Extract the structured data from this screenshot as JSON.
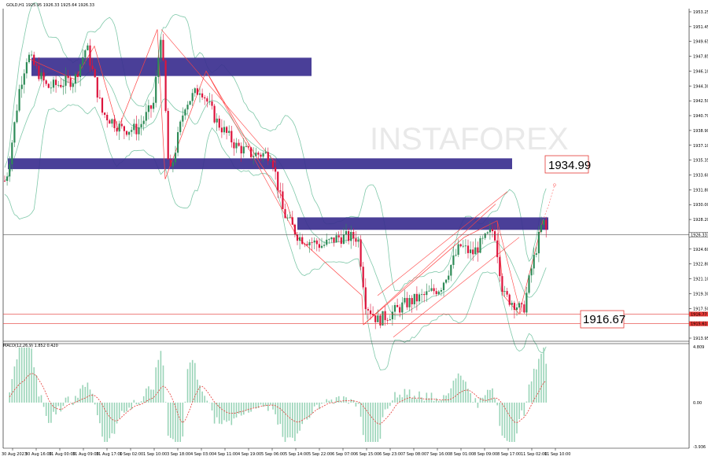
{
  "chart_data": {
    "type": "candlestick",
    "symbol_header": "GOLD,H1  1925.95 1926.33 1925.64 1926.33",
    "watermark": "INSTAFOREX",
    "macd_label": "MACD(12,26,9) 1.852 0.420",
    "price_axis": {
      "min": 1913.5,
      "max": 1953.5,
      "ticks": [
        "1953.25",
        "1951.45",
        "1949.65",
        "1947.85",
        "1946.10",
        "1944.30",
        "1942.50",
        "1940.70",
        "1938.90",
        "1937.10",
        "1935.35",
        "1933.60",
        "1931.80",
        "1930.00",
        "1928.20",
        "1926.40",
        "1924.60",
        "1922.80",
        "1921.10",
        "1919.30",
        "1917.50",
        "1915.75",
        "1913.95"
      ],
      "current_price": "1926.33",
      "tag_red_1": "1916.77",
      "tag_red_2": "1915.61"
    },
    "macd_axis": {
      "ticks": [
        "4.809",
        "0.00",
        "-3.936"
      ]
    },
    "time_labels": [
      "30 Aug 2023",
      "30 Aug 16:00",
      "31 Aug 00:00",
      "31 Aug 09:00",
      "31 Aug 17:00",
      "1 Sep 02:00",
      "1 Sep 10:00",
      "3 Sep 18:00",
      "4 Sep 03:00",
      "4 Sep 11:00",
      "4 Sep 19:00",
      "5 Sep 06:00",
      "5 Sep 14:00",
      "5 Sep 22:00",
      "6 Sep 07:00",
      "6 Sep 15:00",
      "6 Sep 23:00",
      "7 Sep 08:00",
      "7 Sep 16:00",
      "8 Sep 01:00",
      "8 Sep 09:00",
      "8 Sep 17:00",
      "11 Sep 02:00",
      "11 Sep 10:00"
    ],
    "annotations": {
      "upper_level": "1934.99",
      "lower_level": "1916.67"
    },
    "zones": [
      {
        "name": "resistance-zone-1",
        "from": 1945.4,
        "to": 1947.6
      },
      {
        "name": "zone-2",
        "from": 1934.2,
        "to": 1935.5
      },
      {
        "name": "zone-3",
        "from": 1926.9,
        "to": 1928.4
      }
    ],
    "colors": {
      "bull": "#2e8b57",
      "bear": "#dc143c",
      "zone": "#3b2f8f",
      "trend": "#ff4040",
      "band": "#7fc8a9"
    }
  }
}
